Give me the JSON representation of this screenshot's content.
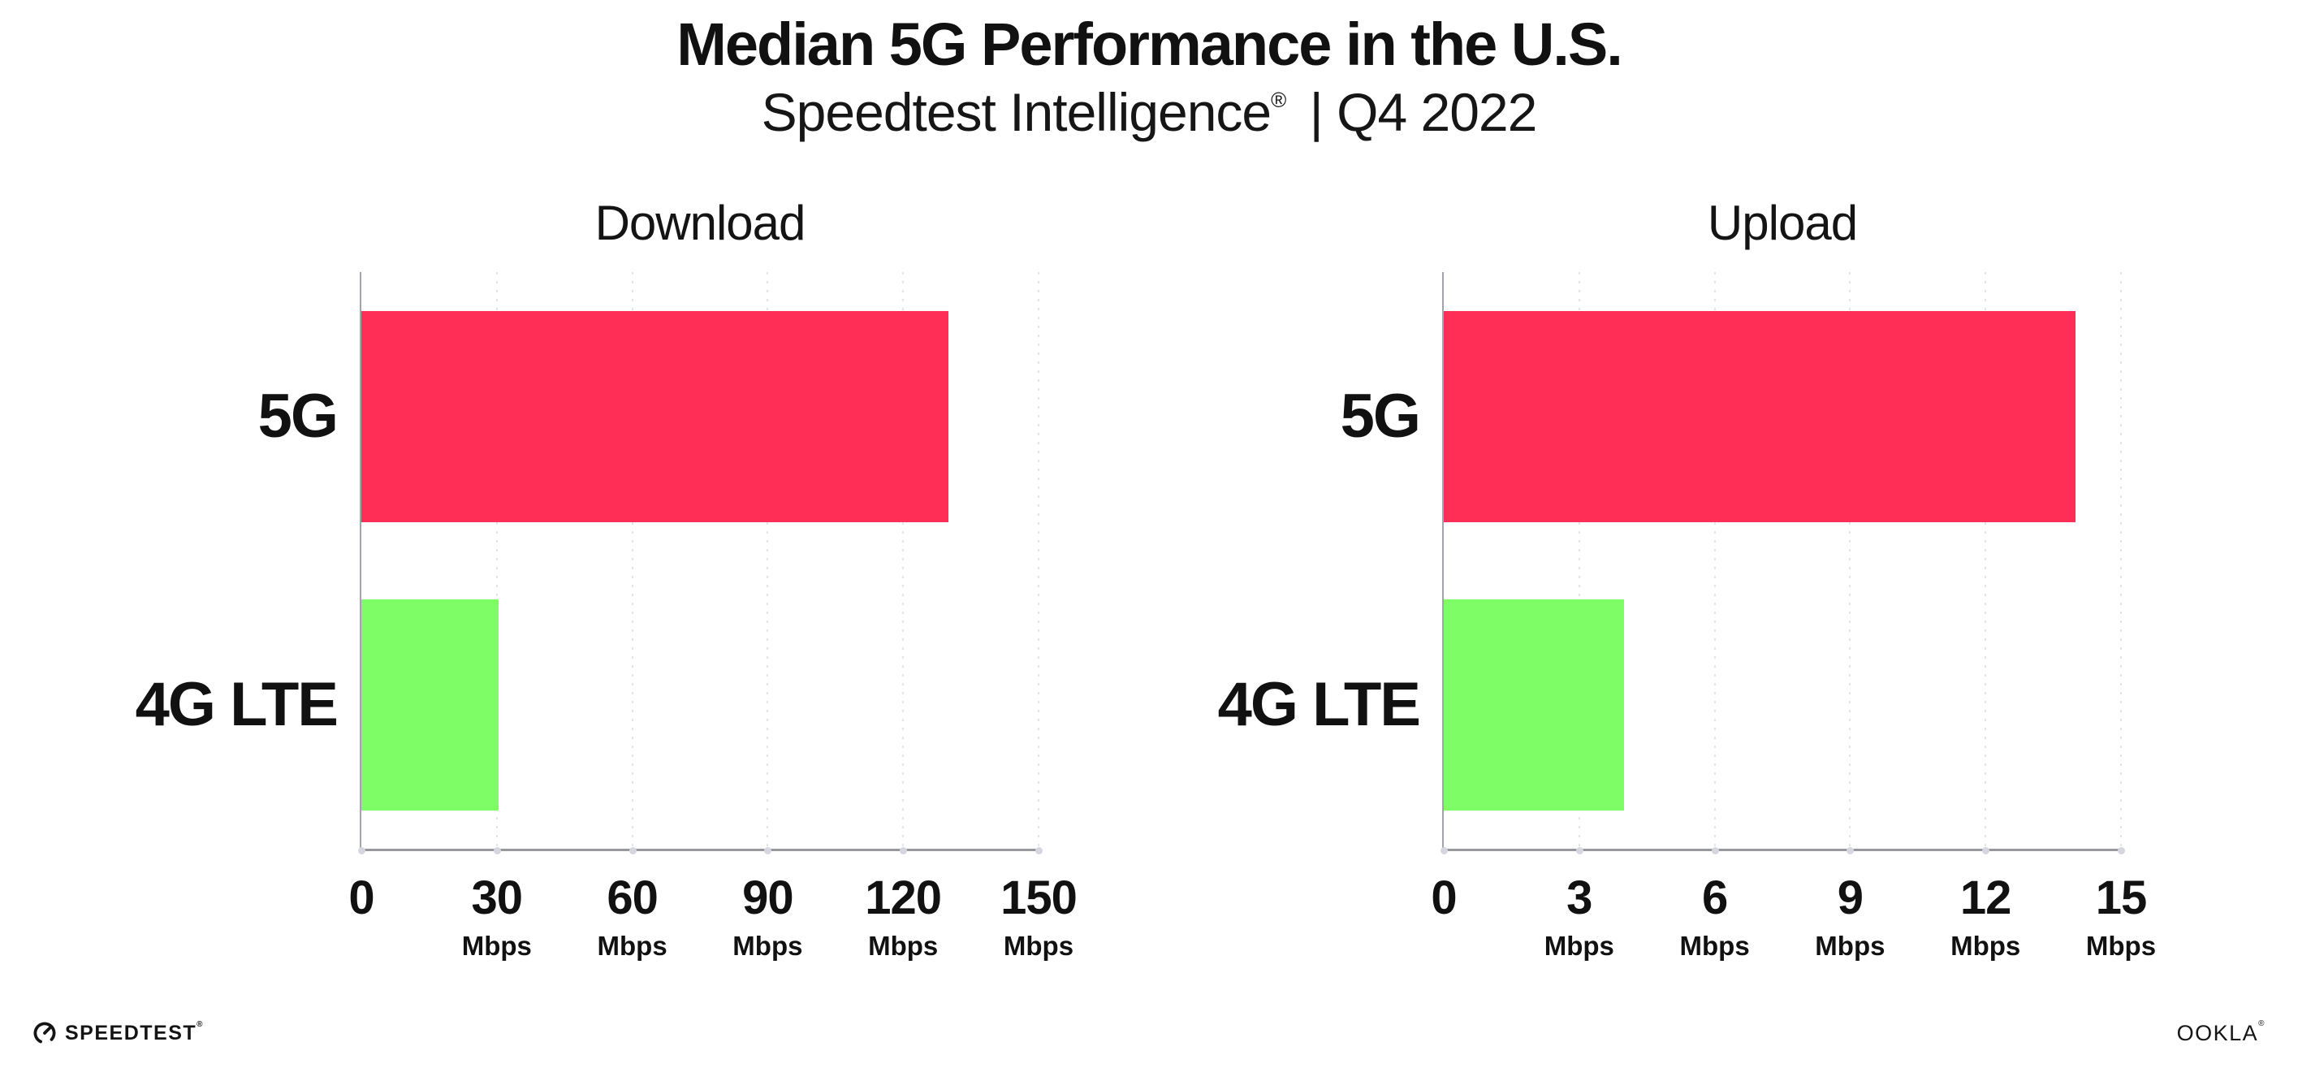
{
  "header": {
    "title": "Median 5G Performance in the U.S.",
    "subtitle_brand": "Speedtest Intelligence",
    "subtitle_reg": "®",
    "subtitle_rest": "| Q4 2022"
  },
  "colors": {
    "bar_5g": "#FF2E56",
    "bar_4g_lte": "#7EFD66",
    "axis": "#97979e",
    "gridline": "#e3e3eb",
    "text": "#111111"
  },
  "chart_data": [
    {
      "type": "bar",
      "orientation": "horizontal",
      "title": "Download",
      "categories": [
        "5G",
        "4G LTE"
      ],
      "values": [
        130,
        30.4
      ],
      "unit": "Mbps",
      "xlim": [
        0,
        150
      ],
      "xticks": [
        0,
        30,
        60,
        90,
        120,
        150
      ],
      "grid": "dotted-vertical",
      "legend": "none",
      "bar_colors": [
        "#FF2E56",
        "#7EFD66"
      ]
    },
    {
      "type": "bar",
      "orientation": "horizontal",
      "title": "Upload",
      "categories": [
        "5G",
        "4G LTE"
      ],
      "values": [
        14,
        4
      ],
      "unit": "Mbps",
      "xlim": [
        0,
        15
      ],
      "xticks": [
        0,
        3,
        6,
        9,
        12,
        15
      ],
      "grid": "dotted-vertical",
      "legend": "none",
      "bar_colors": [
        "#FF2E56",
        "#7EFD66"
      ]
    }
  ],
  "footer": {
    "speedtest_label": "SPEEDTEST",
    "speedtest_reg": "®",
    "ookla_label": "OOKLA",
    "ookla_reg": "®"
  }
}
